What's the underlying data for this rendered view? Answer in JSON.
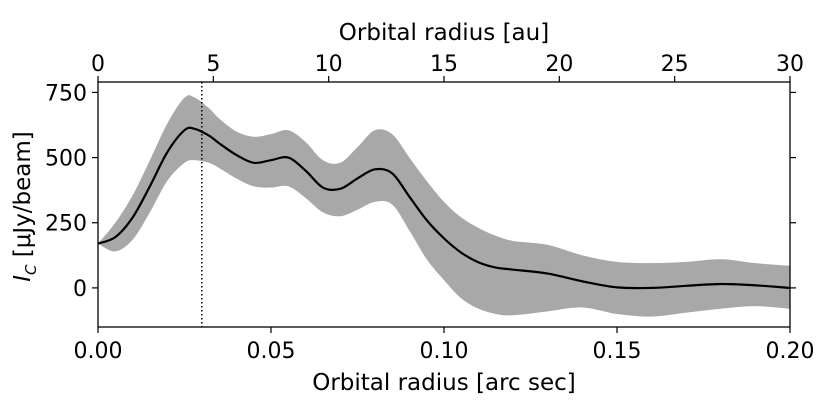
{
  "chart_data": {
    "type": "line",
    "xlabel": "Orbital radius [arc sec]",
    "x2label": "Orbital radius [au]",
    "ylabel": "I_C [μJy/beam]",
    "xlim": [
      0,
      0.2
    ],
    "ylim": [
      -150,
      790
    ],
    "x2lim": [
      0,
      30
    ],
    "xticks": [
      0.0,
      0.05,
      0.1,
      0.15,
      0.2
    ],
    "xtick_labels": [
      "0.00",
      "0.05",
      "0.10",
      "0.15",
      "0.20"
    ],
    "x2ticks": [
      0,
      5,
      10,
      15,
      20,
      25,
      30
    ],
    "x2tick_labels": [
      "0",
      "5",
      "10",
      "15",
      "20",
      "25",
      "30"
    ],
    "yticks": [
      0,
      250,
      500,
      750
    ],
    "ytick_labels": [
      "0",
      "250",
      "500",
      "750"
    ],
    "grid": false,
    "vline_x": 0.03,
    "line_color": "#000000",
    "band_color": "#a8a8a8",
    "series": [
      {
        "x": [
          0.0,
          0.005,
          0.01,
          0.015,
          0.02,
          0.025,
          0.028,
          0.032,
          0.035,
          0.04,
          0.045,
          0.05,
          0.055,
          0.06,
          0.065,
          0.07,
          0.075,
          0.08,
          0.085,
          0.09,
          0.095,
          0.1,
          0.105,
          0.11,
          0.115,
          0.12,
          0.13,
          0.14,
          0.15,
          0.16,
          0.17,
          0.18,
          0.19,
          0.2
        ],
        "values": [
          170,
          195,
          270,
          390,
          520,
          605,
          610,
          585,
          555,
          510,
          480,
          490,
          500,
          450,
          385,
          380,
          420,
          455,
          440,
          350,
          260,
          190,
          135,
          98,
          78,
          70,
          55,
          25,
          2,
          0,
          8,
          15,
          10,
          0
        ],
        "lower": [
          170,
          140,
          185,
          290,
          410,
          480,
          490,
          480,
          460,
          420,
          390,
          385,
          390,
          345,
          290,
          275,
          300,
          330,
          320,
          220,
          110,
          30,
          -40,
          -80,
          -100,
          -105,
          -90,
          -75,
          -100,
          -110,
          -95,
          -80,
          -70,
          -80
        ],
        "upper": [
          170,
          250,
          355,
          490,
          630,
          730,
          730,
          690,
          650,
          600,
          580,
          590,
          605,
          560,
          490,
          480,
          540,
          605,
          590,
          500,
          410,
          330,
          270,
          230,
          200,
          180,
          165,
          125,
          100,
          95,
          100,
          110,
          95,
          85
        ]
      }
    ]
  }
}
